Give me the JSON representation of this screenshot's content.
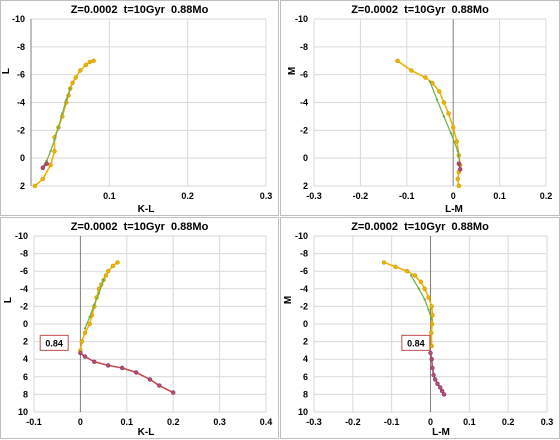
{
  "chart_data": [
    {
      "type": "line",
      "title": "Z=0.0002  t=10Gyr  0.88Mo",
      "xlabel": "K-L",
      "ylabel": "L",
      "xlim": [
        0,
        0.3
      ],
      "ylim": [
        2,
        -10
      ],
      "xticks": [
        0.1,
        0.2,
        0.3
      ],
      "yticks": [
        -10,
        -8,
        -6,
        -4,
        -2,
        0,
        2
      ],
      "grid": true,
      "series": [
        {
          "color": "#f0b400",
          "x": [
            0.005,
            0.015,
            0.025,
            0.03,
            0.03,
            0.035,
            0.04,
            0.045,
            0.048,
            0.05,
            0.053,
            0.057,
            0.063,
            0.07,
            0.075,
            0.08
          ],
          "y": [
            2.0,
            1.5,
            0.5,
            -0.5,
            -1.5,
            -2.2,
            -3.0,
            -4.0,
            -4.5,
            -5.0,
            -5.4,
            -5.8,
            -6.3,
            -6.7,
            -6.9,
            -7.0
          ]
        },
        {
          "color": "#70ad47",
          "x": [
            0.015,
            0.02,
            0.025,
            0.03,
            0.035,
            0.04,
            0.045,
            0.05
          ],
          "y": [
            0.6,
            0.2,
            -0.5,
            -1.3,
            -2.2,
            -3.2,
            -4.2,
            -5.0
          ]
        },
        {
          "color": "#c0504d",
          "x": [
            0.015,
            0.02
          ],
          "y": [
            0.7,
            0.4
          ]
        }
      ]
    },
    {
      "type": "line",
      "title": "Z=0.0002  t=10Gyr  0.88Mo",
      "xlabel": "L-M",
      "ylabel": "M",
      "xlim": [
        -0.3,
        0.2
      ],
      "ylim": [
        2,
        -10
      ],
      "xticks": [
        -0.3,
        -0.2,
        -0.1,
        0,
        0.1,
        0.2
      ],
      "yticks": [
        -10,
        -8,
        -6,
        -4,
        -2,
        0,
        2
      ],
      "grid": true,
      "series": [
        {
          "color": "#f0b400",
          "x": [
            -0.12,
            -0.09,
            -0.06,
            -0.045,
            -0.03,
            -0.02,
            -0.01,
            0.0,
            0.008,
            0.012,
            0.015,
            0.012,
            0.01,
            0.012
          ],
          "y": [
            -7.0,
            -6.3,
            -5.8,
            -5.4,
            -4.8,
            -4.0,
            -3.2,
            -2.2,
            -1.2,
            -0.2,
            0.5,
            1.0,
            1.5,
            2.0
          ]
        },
        {
          "color": "#70ad47",
          "x": [
            -0.05,
            -0.035,
            -0.02,
            -0.005,
            0.01,
            0.015
          ],
          "y": [
            -5.5,
            -4.2,
            -3.0,
            -1.8,
            -0.5,
            0.5
          ]
        },
        {
          "color": "#c0504d",
          "x": [
            0.012,
            0.015
          ],
          "y": [
            0.4,
            0.8
          ]
        }
      ]
    },
    {
      "type": "line",
      "title": "Z=0.0002  t=10Gyr  0.88Mo",
      "xlabel": "K-L",
      "ylabel": "L",
      "xlim": [
        -0.1,
        0.4
      ],
      "ylim": [
        10,
        -10
      ],
      "xticks": [
        -0.1,
        0,
        0.1,
        0.2,
        0.3,
        0.4
      ],
      "yticks": [
        -10,
        -8,
        -6,
        -4,
        -2,
        0,
        2,
        4,
        6,
        8,
        10
      ],
      "grid": true,
      "annotation": {
        "text": "0.84",
        "x": -0.05,
        "y": 2.2
      },
      "series": [
        {
          "color": "#f0b400",
          "x": [
            0.0,
            0.003,
            0.01,
            0.02,
            0.025,
            0.03,
            0.035,
            0.04,
            0.045,
            0.05,
            0.055,
            0.06,
            0.07,
            0.08
          ],
          "y": [
            3.0,
            2.0,
            1.0,
            0.0,
            -1.0,
            -2.0,
            -3.0,
            -4.0,
            -4.5,
            -5.0,
            -5.5,
            -6.0,
            -6.6,
            -7.0
          ]
        },
        {
          "color": "#70ad47",
          "x": [
            0.01,
            0.02,
            0.03,
            0.04,
            0.05
          ],
          "y": [
            0.5,
            -0.8,
            -2.2,
            -3.5,
            -5.0
          ]
        },
        {
          "color": "#c0504d",
          "x": [
            0.0,
            0.01,
            0.03,
            0.06,
            0.09,
            0.12,
            0.15,
            0.17,
            0.2
          ],
          "y": [
            3.3,
            3.7,
            4.3,
            4.7,
            5.0,
            5.5,
            6.3,
            7.0,
            7.8
          ]
        }
      ]
    },
    {
      "type": "line",
      "title": "Z=0.0002  t=10Gyr  0.88Mo",
      "xlabel": "L-M",
      "ylabel": "M",
      "xlim": [
        -0.3,
        0.3
      ],
      "ylim": [
        10,
        -10
      ],
      "xticks": [
        -0.3,
        -0.2,
        -0.1,
        0,
        0.1,
        0.2,
        0.3
      ],
      "yticks": [
        -10,
        -8,
        -6,
        -4,
        -2,
        0,
        2,
        4,
        6,
        8,
        10
      ],
      "grid": true,
      "annotation": {
        "text": "0.84",
        "x": -0.03,
        "y": 2.2
      },
      "series": [
        {
          "color": "#f0b400",
          "x": [
            -0.12,
            -0.09,
            -0.06,
            -0.04,
            -0.025,
            -0.015,
            -0.005,
            0.003,
            0.005,
            0.004,
            0.002,
            0.003
          ],
          "y": [
            -7.0,
            -6.5,
            -6.0,
            -5.5,
            -4.8,
            -4.0,
            -3.0,
            -2.0,
            -1.0,
            0.0,
            1.0,
            2.5
          ]
        },
        {
          "color": "#70ad47",
          "x": [
            -0.05,
            -0.03,
            -0.015,
            -0.005,
            0.003
          ],
          "y": [
            -5.5,
            -4.0,
            -2.8,
            -1.6,
            -0.5
          ]
        },
        {
          "color": "#c0504d",
          "x": [
            0.0,
            0.003,
            0.005,
            0.008,
            0.012,
            0.018,
            0.025,
            0.03,
            0.035
          ],
          "y": [
            3.3,
            4.0,
            5.0,
            5.8,
            6.3,
            6.8,
            7.2,
            7.6,
            8.0
          ]
        }
      ]
    }
  ]
}
